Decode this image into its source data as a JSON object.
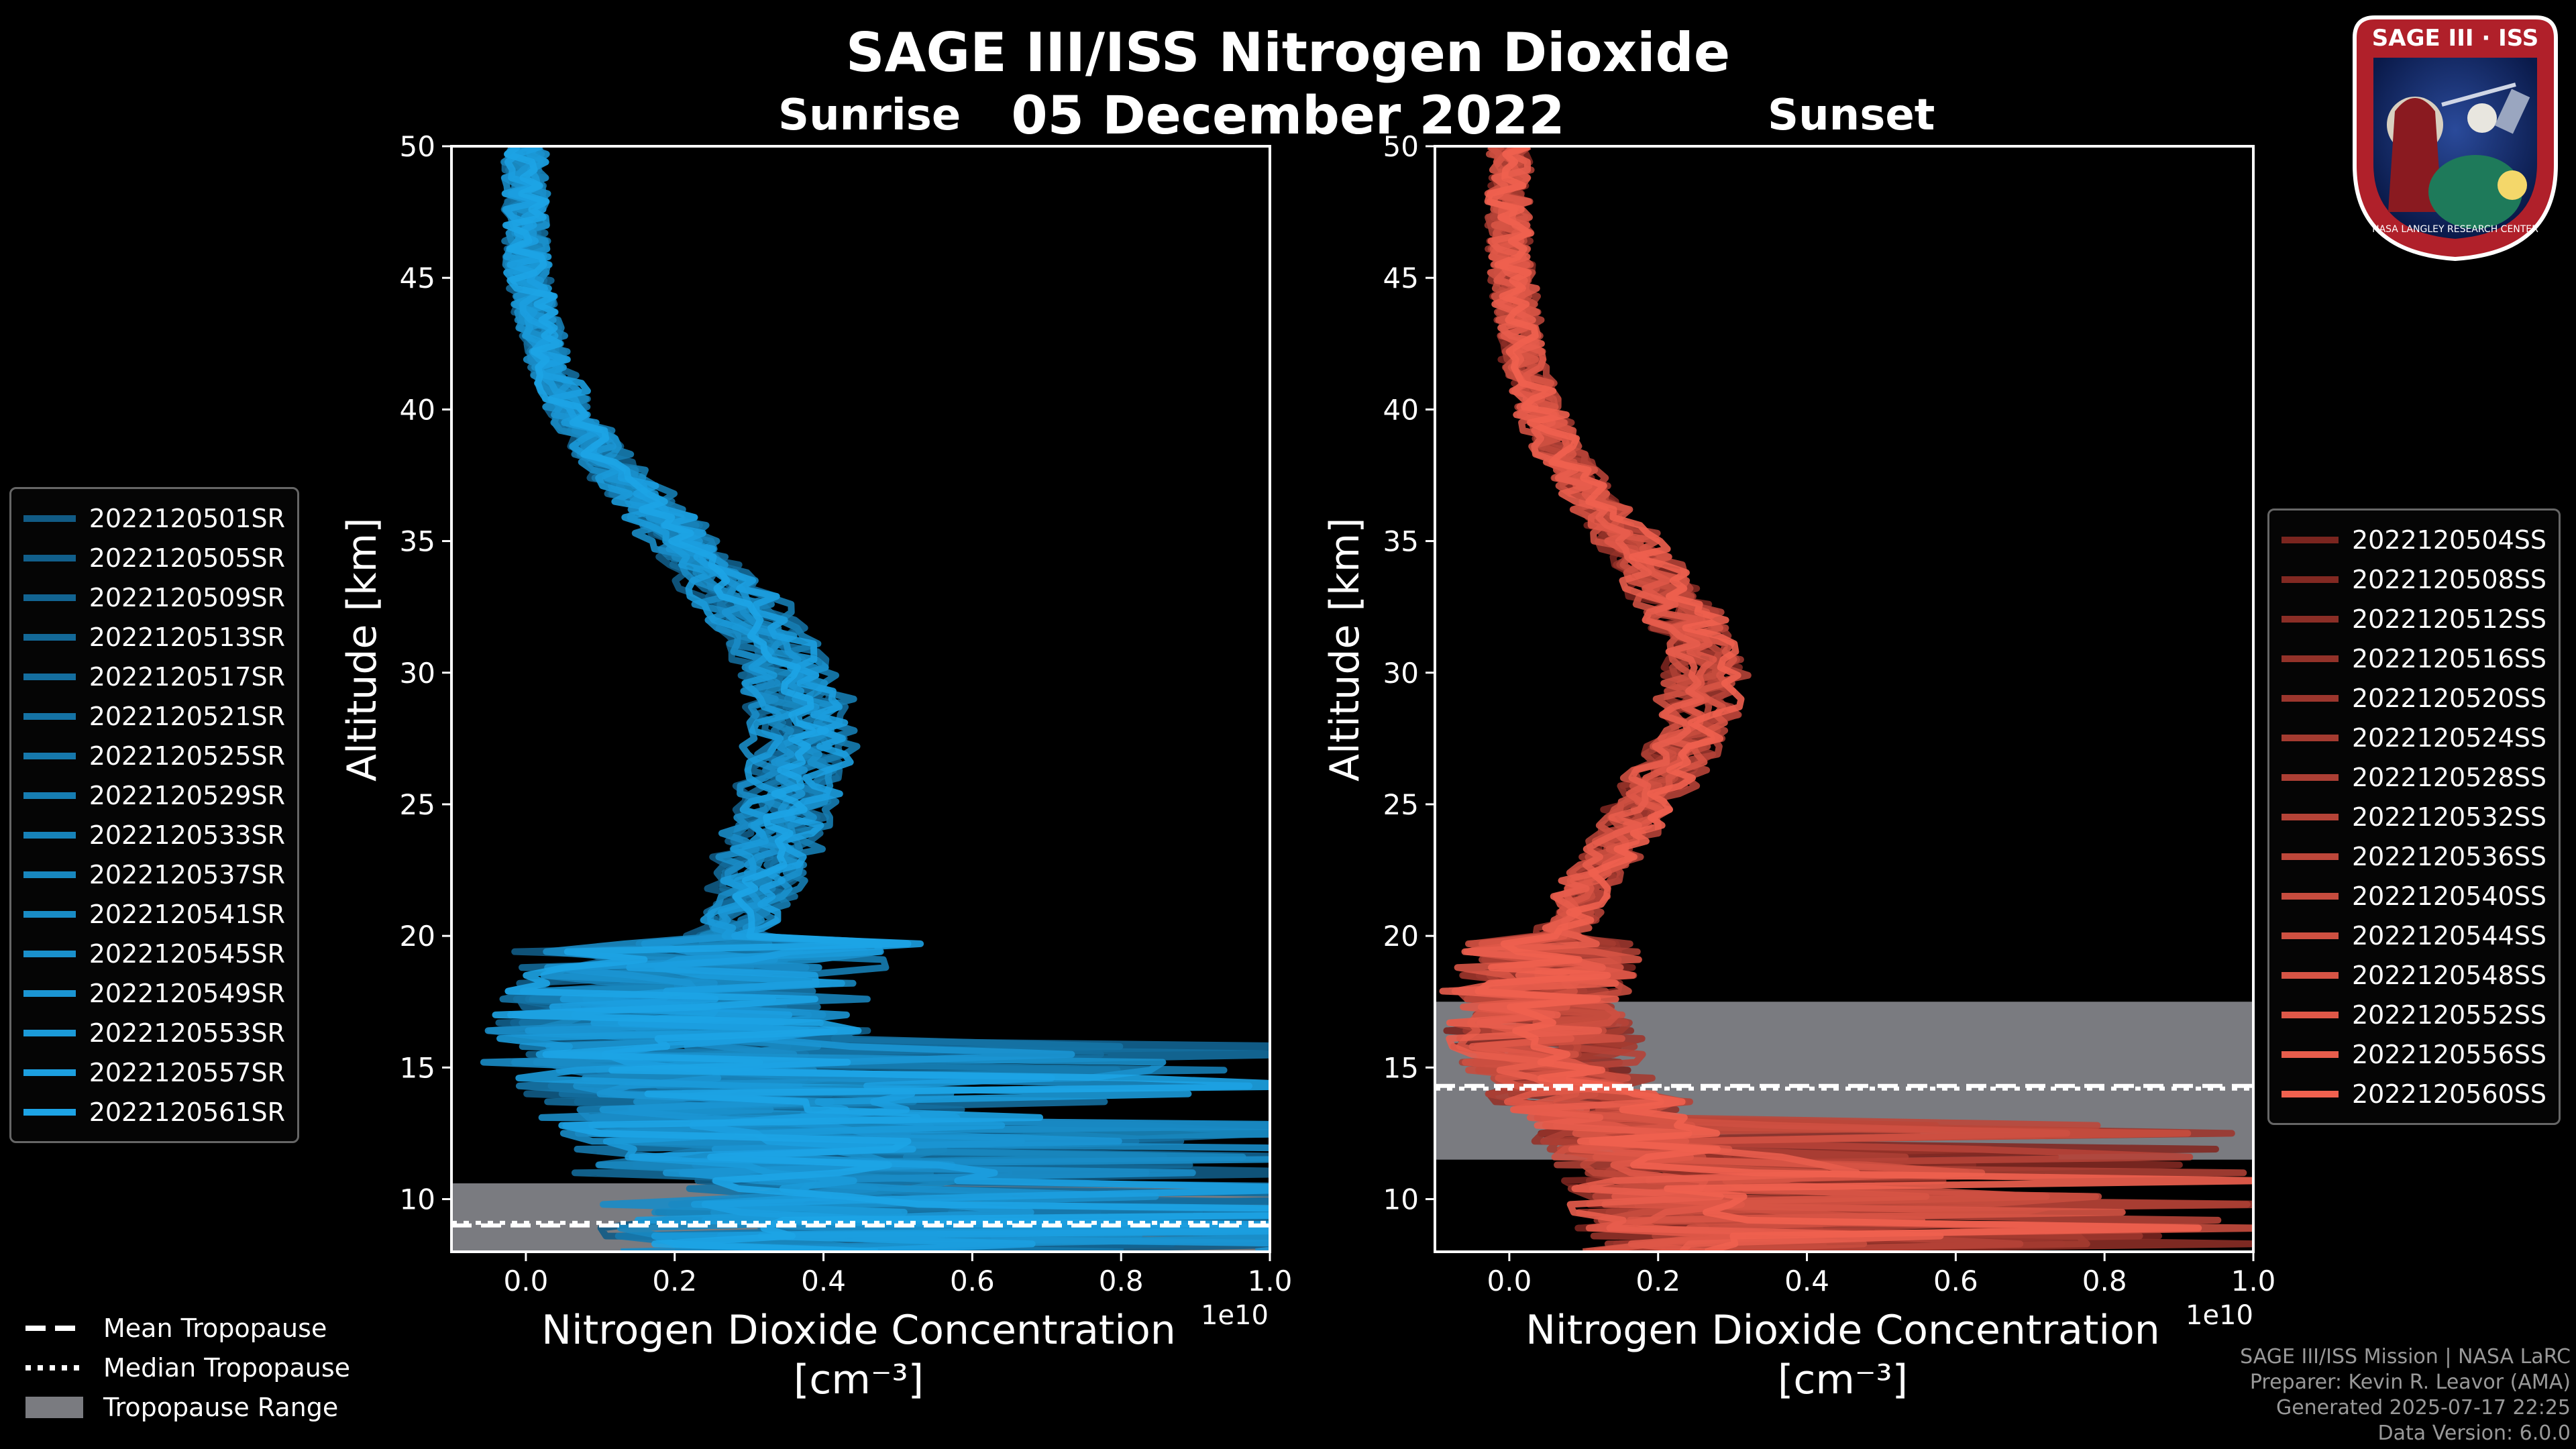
{
  "title": "SAGE III/ISS Nitrogen Dioxide",
  "date": "05 December 2022",
  "logo": {
    "text": "SAGE III · ISS",
    "ring_text": "NASA LANGLEY RESEARCH CENTER"
  },
  "footer": {
    "line1": "SAGE III/ISS Mission | NASA LaRC",
    "line2": "Preparer: Kevin R. Leavor (AMA)",
    "line3": "Generated 2025-07-17 22:25",
    "line4": "Data Version: 6.0.0"
  },
  "common_legend": {
    "mean": "Mean Tropopause",
    "median": "Median Tropopause",
    "range": "Tropopause Range"
  },
  "chart_data": [
    {
      "type": "line",
      "title": "Sunrise",
      "xlabel": "Nitrogen Dioxide Concentration",
      "xunit": "[cm⁻³]",
      "ylabel": "Altitude [km]",
      "x_scale_note": "1e10",
      "xlim": [
        -0.1,
        1.0
      ],
      "ylim": [
        8,
        50
      ],
      "xticks": [
        "0.0",
        "0.2",
        "0.4",
        "0.6",
        "0.8",
        "1.0"
      ],
      "yticks": [
        "10",
        "15",
        "20",
        "25",
        "30",
        "35",
        "40",
        "45",
        "50"
      ],
      "xtick_values": [
        0.0,
        0.2,
        0.4,
        0.6,
        0.8,
        1.0
      ],
      "ytick_values": [
        10,
        15,
        20,
        25,
        30,
        35,
        40,
        45,
        50
      ],
      "color_dark": "#0a3350",
      "color_light": "#1da4e6",
      "tropopause": {
        "mean": 9.0,
        "median": 9.1,
        "range": [
          8.0,
          10.6
        ]
      },
      "profile": {
        "alt": [
          50,
          48,
          46,
          44,
          42,
          40,
          38,
          36,
          34,
          32,
          30,
          28,
          26,
          24,
          22,
          20,
          18,
          17,
          16,
          15,
          14,
          13,
          12,
          11,
          10,
          9,
          8
        ],
        "no2": [
          0.0,
          0.0,
          0.0,
          0.01,
          0.03,
          0.06,
          0.11,
          0.18,
          0.25,
          0.31,
          0.36,
          0.38,
          0.37,
          0.34,
          0.32,
          0.28,
          0.22,
          0.2,
          0.2,
          0.22,
          0.25,
          0.28,
          0.32,
          0.35,
          0.38,
          0.4,
          0.4
        ]
      },
      "series": [
        {
          "name": "2022120501SR"
        },
        {
          "name": "2022120505SR"
        },
        {
          "name": "2022120509SR"
        },
        {
          "name": "2022120513SR"
        },
        {
          "name": "2022120517SR"
        },
        {
          "name": "2022120521SR"
        },
        {
          "name": "2022120525SR"
        },
        {
          "name": "2022120529SR"
        },
        {
          "name": "2022120533SR"
        },
        {
          "name": "2022120537SR"
        },
        {
          "name": "2022120541SR"
        },
        {
          "name": "2022120545SR"
        },
        {
          "name": "2022120549SR"
        },
        {
          "name": "2022120553SR"
        },
        {
          "name": "2022120557SR"
        },
        {
          "name": "2022120561SR"
        }
      ]
    },
    {
      "type": "line",
      "title": "Sunset",
      "xlabel": "Nitrogen Dioxide Concentration",
      "xunit": "[cm⁻³]",
      "ylabel": "Altitude [km]",
      "x_scale_note": "1e10",
      "xlim": [
        -0.1,
        1.0
      ],
      "ylim": [
        8,
        50
      ],
      "xticks": [
        "0.0",
        "0.2",
        "0.4",
        "0.6",
        "0.8",
        "1.0"
      ],
      "yticks": [
        "10",
        "15",
        "20",
        "25",
        "30",
        "35",
        "40",
        "45",
        "50"
      ],
      "xtick_values": [
        0.0,
        0.2,
        0.4,
        0.6,
        0.8,
        1.0
      ],
      "ytick_values": [
        10,
        15,
        20,
        25,
        30,
        35,
        40,
        45,
        50
      ],
      "color_dark": "#3a0505",
      "color_light": "#f0614f",
      "tropopause": {
        "mean": 14.3,
        "median": 14.2,
        "range": [
          11.5,
          17.5
        ]
      },
      "profile": {
        "alt": [
          50,
          48,
          46,
          44,
          42,
          40,
          38,
          36,
          34,
          32,
          30,
          28,
          26,
          24,
          22,
          20,
          18,
          17,
          16,
          15,
          14,
          13,
          12,
          11,
          10,
          9,
          8
        ],
        "no2": [
          0.0,
          0.0,
          0.0,
          0.01,
          0.02,
          0.04,
          0.08,
          0.13,
          0.19,
          0.24,
          0.27,
          0.25,
          0.21,
          0.16,
          0.11,
          0.07,
          0.04,
          0.04,
          0.05,
          0.07,
          0.1,
          0.13,
          0.16,
          0.19,
          0.21,
          0.22,
          0.22
        ]
      },
      "series": [
        {
          "name": "2022120504SS"
        },
        {
          "name": "2022120508SS"
        },
        {
          "name": "2022120512SS"
        },
        {
          "name": "2022120516SS"
        },
        {
          "name": "2022120520SS"
        },
        {
          "name": "2022120524SS"
        },
        {
          "name": "2022120528SS"
        },
        {
          "name": "2022120532SS"
        },
        {
          "name": "2022120536SS"
        },
        {
          "name": "2022120540SS"
        },
        {
          "name": "2022120544SS"
        },
        {
          "name": "2022120548SS"
        },
        {
          "name": "2022120552SS"
        },
        {
          "name": "2022120556SS"
        },
        {
          "name": "2022120560SS"
        }
      ]
    }
  ]
}
